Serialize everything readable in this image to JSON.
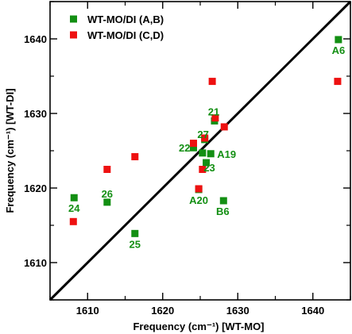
{
  "chart_data": {
    "type": "scatter",
    "xlabel": "Frequency (cm⁻¹) [WT-MO]",
    "ylabel": "Frequency (cm⁻¹) [WT-DI]",
    "xlim": [
      1605,
      1645
    ],
    "ylim": [
      1605,
      1645
    ],
    "x_ticks": [
      1610,
      1620,
      1630,
      1640
    ],
    "y_ticks": [
      1610,
      1620,
      1630,
      1640
    ],
    "grid": false,
    "legend_position": "top-left",
    "reference_line": {
      "from": [
        1605,
        1605
      ],
      "to": [
        1645,
        1645
      ],
      "color": "#000000"
    },
    "series": [
      {
        "name": "WT-MO/DI (A,B)",
        "color": "#138f13",
        "points": [
          {
            "x": 1608.2,
            "y": 1618.7,
            "label": "24"
          },
          {
            "x": 1612.6,
            "y": 1618.1,
            "label": "26"
          },
          {
            "x": 1616.3,
            "y": 1613.9,
            "label": "25"
          },
          {
            "x": 1624.1,
            "y": 1625.4,
            "label": "22"
          },
          {
            "x": 1625.3,
            "y": 1624.7,
            "label": ""
          },
          {
            "x": 1625.8,
            "y": 1623.4,
            "label": "23"
          },
          {
            "x": 1625.6,
            "y": 1626.5,
            "label": "27"
          },
          {
            "x": 1626.4,
            "y": 1624.6,
            "label": "A19"
          },
          {
            "x": 1626.9,
            "y": 1629.0,
            "label": "21"
          },
          {
            "x": 1624.8,
            "y": 1619.8,
            "label": "A20"
          },
          {
            "x": 1628.1,
            "y": 1618.3,
            "label": "B6"
          },
          {
            "x": 1643.4,
            "y": 1639.9,
            "label": "A6"
          }
        ]
      },
      {
        "name": "WT-MO/DI (C,D)",
        "color": "#ee1111",
        "points": [
          {
            "x": 1608.1,
            "y": 1615.5
          },
          {
            "x": 1612.6,
            "y": 1622.5
          },
          {
            "x": 1616.3,
            "y": 1624.2
          },
          {
            "x": 1624.1,
            "y": 1626.0
          },
          {
            "x": 1625.6,
            "y": 1626.7
          },
          {
            "x": 1625.3,
            "y": 1622.5
          },
          {
            "x": 1624.8,
            "y": 1619.9
          },
          {
            "x": 1626.6,
            "y": 1634.3
          },
          {
            "x": 1627.0,
            "y": 1629.4
          },
          {
            "x": 1628.2,
            "y": 1628.2
          },
          {
            "x": 1643.3,
            "y": 1634.3
          }
        ]
      }
    ]
  }
}
